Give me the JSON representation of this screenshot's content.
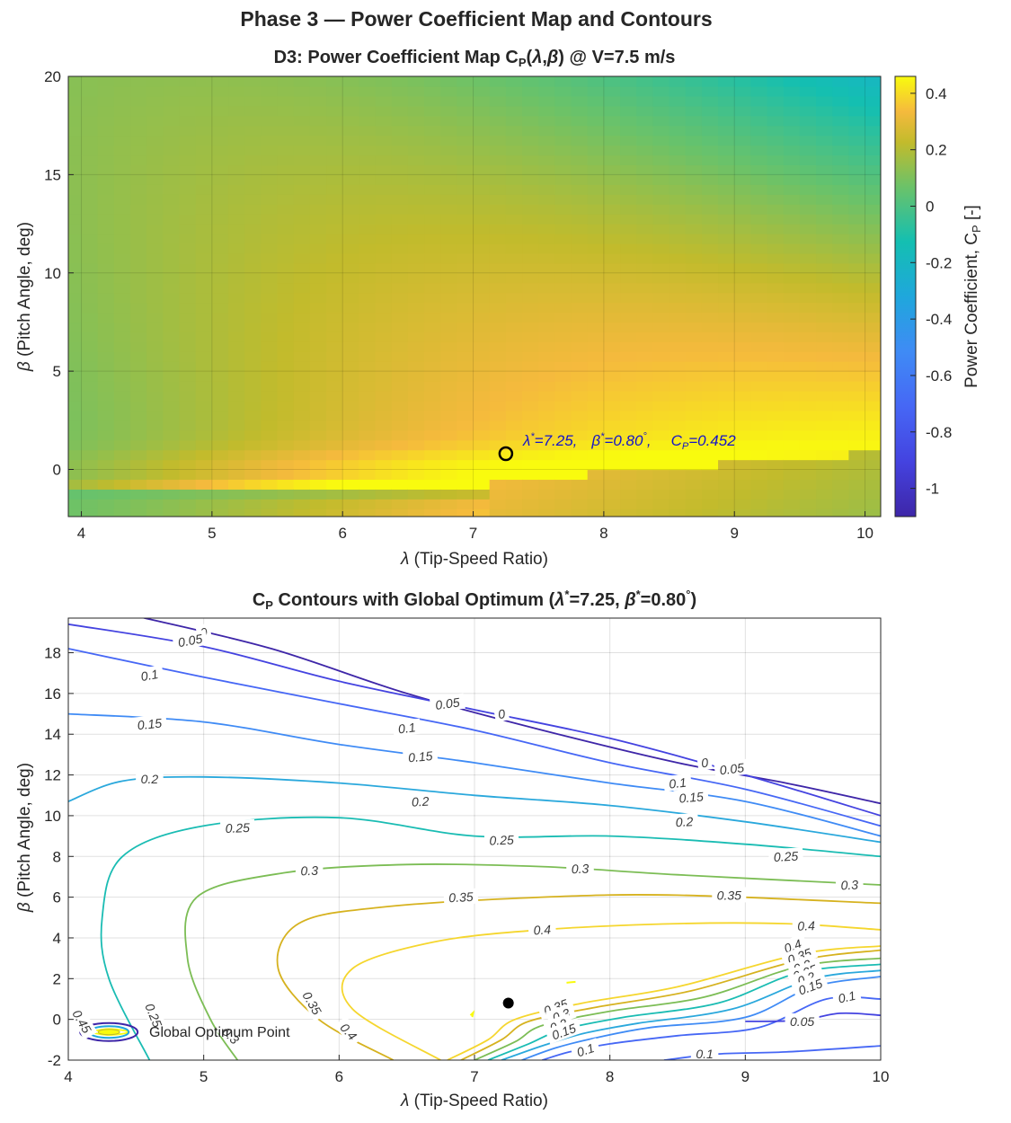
{
  "figure": {
    "title": "Phase 3 — Power Coefficient Map and Contours"
  },
  "chart_data": [
    {
      "type": "heatmap",
      "title": "D3:  Power  Coefficient  Map    C_P(λ,β)  @  V=7.5  m/s",
      "title_parts": {
        "a": "D3:  Power  Coefficient  Map   C",
        "sub": "P",
        "b": "(",
        "lam": "λ",
        "c": ",",
        "beta": "β",
        "d": ")  @  V=7.5  m/s"
      },
      "xlabel": "λ  (Tip-Speed  Ratio)",
      "xlabel_parts": {
        "sym": "λ",
        "text": "  (Tip-Speed  Ratio)"
      },
      "ylabel": "β  (Pitch  Angle,  deg)",
      "ylabel_parts": {
        "sym": "β",
        "text": "  (Pitch  Angle,  deg)"
      },
      "xlim": [
        3.9,
        10.12
      ],
      "ylim": [
        -2.4,
        20
      ],
      "xticks": [
        "4",
        "5",
        "6",
        "7",
        "8",
        "9",
        "10"
      ],
      "yticks": [
        "0",
        "5",
        "10",
        "15",
        "20"
      ],
      "grid": {
        "x": [
          3.5,
          10.5,
          0.125
        ],
        "y": [
          -2.5,
          20.5,
          0.5
        ]
      },
      "colorbar": {
        "label": "Power  Coefficient,  C",
        "label_sub": "P",
        "label_end": "  [-]",
        "range": [
          -1.1,
          0.46
        ],
        "ticks": [
          "0.4",
          "0.2",
          "0",
          "-0.2",
          "-0.4",
          "-0.6",
          "-0.8",
          "-1"
        ],
        "colormap": "parula"
      },
      "optimum": {
        "lambda": 7.25,
        "beta": 0.8,
        "cp": 0.452
      },
      "annotation": {
        "a": "λ",
        "b": "*",
        "c": "=7.25,",
        "d": "β",
        "e": "*",
        "f": "=0.80",
        "g": "°",
        "h": ",",
        "i": "C",
        "j": "P",
        "k": "=0.452"
      },
      "colors": {
        "annotation": "#1414c8",
        "marker": "#000000"
      }
    },
    {
      "type": "contour",
      "title_parts": {
        "a": "C",
        "sub": "P",
        "b": "  Contours  with  Global  Optimum    (",
        "lam": "λ",
        "star1": "*",
        "c": "=7.25,  ",
        "beta": "β",
        "star2": "*",
        "d": "=0.80",
        "deg": "°",
        "e": ")"
      },
      "xlabel_parts": {
        "sym": "λ",
        "text": "  (Tip-Speed  Ratio)"
      },
      "ylabel_parts": {
        "sym": "β",
        "text": "  (Pitch  Angle,  deg)"
      },
      "xlim": [
        4,
        10
      ],
      "ylim": [
        -2,
        19.7
      ],
      "xticks": [
        "4",
        "5",
        "6",
        "7",
        "8",
        "9",
        "10"
      ],
      "yticks": [
        "-2",
        "0",
        "2",
        "4",
        "6",
        "8",
        "10",
        "12",
        "14",
        "16",
        "18"
      ],
      "levels": [
        {
          "level": 0,
          "label": "0",
          "color": "#3e26a8",
          "points": [
            [
              4.5,
              19.8
            ],
            [
              5.5,
              18.2
            ],
            [
              6.5,
              16.0
            ],
            [
              7.5,
              14.2
            ],
            [
              8.5,
              12.6
            ],
            [
              9.3,
              11.6
            ],
            [
              10.0,
              10.6
            ]
          ],
          "labels_at": [
            [
              5.0,
              19.0,
              -12
            ],
            [
              7.2,
              15.0,
              -10
            ],
            [
              8.7,
              12.6,
              -7
            ]
          ]
        },
        {
          "level": 0.05,
          "label": "0.05",
          "color": "#4443e0",
          "points": [
            [
              4.0,
              19.4
            ],
            [
              5.0,
              18.3
            ],
            [
              6.0,
              16.6
            ],
            [
              7.0,
              15.2
            ],
            [
              8.0,
              13.8
            ],
            [
              9.0,
              12.0
            ],
            [
              10.0,
              10.0
            ]
          ],
          "labels_at": [
            [
              4.9,
              18.6,
              -10
            ],
            [
              6.8,
              15.5,
              -8
            ],
            [
              8.9,
              12.3,
              -7
            ]
          ]
        },
        {
          "level": 0.1,
          "label": "0.1",
          "color": "#4667f5",
          "points": [
            [
              4.0,
              18.2
            ],
            [
              5.0,
              16.8
            ],
            [
              6.0,
              15.5
            ],
            [
              7.0,
              14.2
            ],
            [
              8.0,
              12.6
            ],
            [
              9.0,
              11.3
            ],
            [
              10.0,
              9.5
            ]
          ],
          "labels_at": [
            [
              4.6,
              16.9,
              -10
            ],
            [
              6.5,
              14.3,
              -7
            ],
            [
              8.5,
              11.6,
              -6
            ]
          ]
        },
        {
          "level": 0.15,
          "label": "0.15",
          "color": "#3f8bf5",
          "points": [
            [
              4.0,
              15.0
            ],
            [
              5.0,
              14.6
            ],
            [
              6.0,
              13.5
            ],
            [
              7.0,
              12.6
            ],
            [
              8.0,
              11.6
            ],
            [
              9.0,
              10.7
            ],
            [
              10.0,
              9.0
            ]
          ],
          "labels_at": [
            [
              4.6,
              14.5,
              -6
            ],
            [
              6.6,
              12.9,
              -5
            ],
            [
              8.6,
              10.9,
              -5
            ]
          ]
        },
        {
          "level": 0.2,
          "label": "0.2",
          "color": "#2aa8dc",
          "points": [
            [
              4.0,
              10.7
            ],
            [
              4.4,
              11.7
            ],
            [
              5.0,
              11.9
            ],
            [
              6.0,
              11.6
            ],
            [
              7.0,
              11.0
            ],
            [
              8.0,
              10.5
            ],
            [
              9.0,
              9.7
            ],
            [
              10.0,
              8.7
            ]
          ],
          "labels_at": [
            [
              4.6,
              11.8,
              0
            ],
            [
              6.6,
              10.7,
              -3
            ],
            [
              8.55,
              9.7,
              -3
            ]
          ]
        },
        {
          "level": 0.25,
          "label": "0.25",
          "color": "#1abcb3",
          "points": [
            [
              4.6,
              -2.0
            ],
            [
              4.3,
              2.0
            ],
            [
              4.25,
              5.0
            ],
            [
              4.4,
              8.0
            ],
            [
              5.0,
              9.5
            ],
            [
              6.0,
              9.9
            ],
            [
              7.0,
              9.0
            ],
            [
              8.0,
              9.0
            ],
            [
              9.0,
              8.6
            ],
            [
              10.0,
              8.0
            ]
          ],
          "labels_at": [
            [
              5.25,
              9.4,
              -2
            ],
            [
              7.2,
              8.8,
              -2
            ],
            [
              9.3,
              8.0,
              -3
            ],
            [
              4.63,
              0.2,
              68
            ]
          ]
        },
        {
          "level": 0.3,
          "label": "0.3",
          "color": "#7cbd55",
          "points": [
            [
              5.25,
              -2.0
            ],
            [
              5.05,
              0.0
            ],
            [
              4.88,
              3.0
            ],
            [
              4.95,
              6.0
            ],
            [
              5.6,
              7.2
            ],
            [
              6.5,
              7.6
            ],
            [
              7.5,
              7.5
            ],
            [
              8.5,
              7.1
            ],
            [
              10.0,
              6.6
            ]
          ],
          "labels_at": [
            [
              5.78,
              7.3,
              -2
            ],
            [
              7.78,
              7.4,
              -2
            ],
            [
              9.77,
              6.6,
              -2
            ],
            [
              5.2,
              -0.8,
              45
            ]
          ]
        },
        {
          "level": 0.35,
          "label": "0.35",
          "color": "#d6b21f",
          "points": [
            [
              6.4,
              -2.0
            ],
            [
              5.85,
              0.0
            ],
            [
              5.55,
              2.5
            ],
            [
              5.7,
              4.7
            ],
            [
              6.3,
              5.5
            ],
            [
              7.5,
              6.0
            ],
            [
              8.5,
              6.1
            ],
            [
              10.0,
              5.7
            ]
          ],
          "labels_at": [
            [
              6.9,
              6.0,
              -3
            ],
            [
              8.88,
              6.1,
              0
            ],
            [
              5.8,
              0.8,
              60
            ]
          ]
        },
        {
          "level": 0.4,
          "label": "0.4",
          "color": "#f5d62e",
          "points": [
            [
              6.75,
              -2.0
            ],
            [
              6.1,
              0.5
            ],
            [
              6.1,
              2.5
            ],
            [
              6.7,
              3.8
            ],
            [
              7.5,
              4.4
            ],
            [
              8.5,
              4.7
            ],
            [
              9.3,
              4.7
            ],
            [
              10.0,
              4.4
            ]
          ],
          "labels_at": [
            [
              7.5,
              4.4,
              -3
            ],
            [
              9.45,
              4.6,
              -2
            ],
            [
              6.07,
              -0.6,
              48
            ]
          ]
        },
        {
          "level": 0.45,
          "label": "0.45",
          "color": "#f9fb0e",
          "points": [
            [
              4.15,
              -0.62
            ],
            [
              4.3,
              -0.47
            ],
            [
              4.45,
              -0.62
            ],
            [
              4.3,
              -0.77
            ],
            [
              4.15,
              -0.62
            ]
          ],
          "labels_at": [
            [
              4.1,
              -0.1,
              60
            ]
          ]
        },
        {
          "level": 0.4,
          "label": "0.4",
          "color": "#f5d62e",
          "points": [
            [
              6.8,
              -2.0
            ],
            [
              7.1,
              -1.0
            ],
            [
              7.3,
              0.0
            ],
            [
              7.8,
              0.8
            ],
            [
              8.5,
              1.6
            ],
            [
              9.4,
              3.2
            ],
            [
              10.0,
              3.6
            ]
          ],
          "labels_at": [
            [
              9.35,
              3.6,
              -20
            ]
          ]
        },
        {
          "level": 0.35,
          "label": "0.35",
          "color": "#d6b21f",
          "points": [
            [
              6.9,
              -2.0
            ],
            [
              7.2,
              -1.0
            ],
            [
              7.4,
              -0.1
            ],
            [
              7.9,
              0.6
            ],
            [
              8.6,
              1.4
            ],
            [
              9.4,
              2.9
            ],
            [
              10.0,
              3.4
            ]
          ],
          "labels_at": [
            [
              9.4,
              3.1,
              -20
            ],
            [
              7.6,
              0.6,
              -20
            ]
          ]
        },
        {
          "level": 0.3,
          "label": "0.3",
          "color": "#7cbd55",
          "points": [
            [
              7.0,
              -2.0
            ],
            [
              7.3,
              -1.1
            ],
            [
              7.5,
              -0.3
            ],
            [
              8.0,
              0.4
            ],
            [
              8.7,
              1.1
            ],
            [
              9.4,
              2.6
            ],
            [
              10.0,
              3.0
            ]
          ],
          "labels_at": [
            [
              9.42,
              2.6,
              -20
            ],
            [
              7.64,
              0.2,
              -20
            ]
          ]
        },
        {
          "level": 0.25,
          "label": "0.25",
          "color": "#1abcb3",
          "points": [
            [
              7.1,
              -2.0
            ],
            [
              7.4,
              -1.2
            ],
            [
              7.65,
              -0.5
            ],
            [
              8.1,
              0.1
            ],
            [
              8.8,
              0.8
            ],
            [
              9.4,
              2.3
            ],
            [
              10.0,
              2.7
            ]
          ],
          "labels_at": [
            [
              9.44,
              2.3,
              -20
            ]
          ]
        },
        {
          "level": 0.2,
          "label": "0.2",
          "color": "#2aa8dc",
          "points": [
            [
              7.2,
              -2.0
            ],
            [
              7.5,
              -1.3
            ],
            [
              7.8,
              -0.7
            ],
            [
              8.2,
              -0.2
            ],
            [
              8.9,
              0.5
            ],
            [
              9.5,
              2.0
            ],
            [
              10.0,
              2.4
            ]
          ],
          "labels_at": [
            [
              9.45,
              2.0,
              -20
            ],
            [
              7.62,
              -0.3,
              -20
            ]
          ]
        },
        {
          "level": 0.15,
          "label": "0.15",
          "color": "#3f8bf5",
          "points": [
            [
              7.35,
              -2.0
            ],
            [
              7.6,
              -1.4
            ],
            [
              7.9,
              -0.9
            ],
            [
              8.3,
              -0.4
            ],
            [
              9.0,
              0.1
            ],
            [
              9.5,
              1.6
            ],
            [
              10.0,
              2.1
            ]
          ],
          "labels_at": [
            [
              9.48,
              1.6,
              -20
            ],
            [
              7.66,
              -0.6,
              -20
            ]
          ]
        },
        {
          "level": 0.1,
          "label": "0.1",
          "color": "#4667f5",
          "points": [
            [
              7.5,
              -2.0
            ],
            [
              7.7,
              -1.6
            ],
            [
              8.0,
              -1.2
            ],
            [
              8.5,
              -0.8
            ],
            [
              9.1,
              -0.4
            ],
            [
              9.6,
              1.0
            ],
            [
              10.0,
              1.0
            ]
          ],
          "labels_at": [
            [
              9.75,
              1.1,
              -12
            ],
            [
              7.82,
              -1.5,
              -18
            ],
            [
              8.7,
              -1.7,
              0
            ]
          ]
        },
        {
          "level": 0.1,
          "label": "0.1",
          "color": "#4667f5",
          "points": [
            [
              8.4,
              -2.0
            ],
            [
              8.8,
              -1.7
            ],
            [
              9.3,
              -1.6
            ],
            [
              10.0,
              -1.3
            ]
          ],
          "labels_at": []
        },
        {
          "level": 0.05,
          "label": "0.05",
          "color": "#4443e0",
          "points": [
            [
              9.0,
              -0.1
            ],
            [
              9.4,
              -0.05
            ],
            [
              9.7,
              0.3
            ],
            [
              10.0,
              0.2
            ]
          ],
          "labels_at": [
            [
              9.42,
              -0.1,
              0
            ]
          ]
        }
      ],
      "optimum": {
        "lambda": 7.25,
        "beta": 0.8
      },
      "legend_label": "Global Optimum Point",
      "colors": {
        "marker": "#000000"
      }
    }
  ]
}
